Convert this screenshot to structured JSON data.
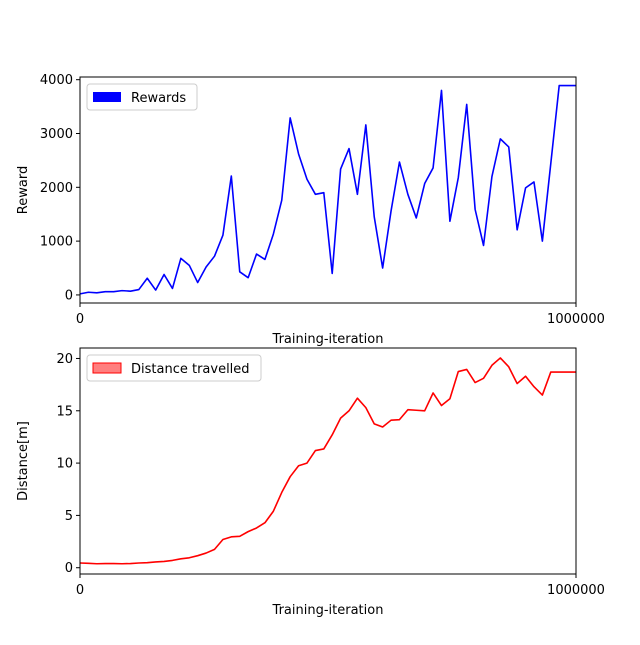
{
  "chart_data": [
    {
      "type": "line",
      "xlabel": "Training-iteration",
      "ylabel": "Reward",
      "xlim": [
        0,
        1000000
      ],
      "ylim": [
        -150,
        4050
      ],
      "xticks": [
        0,
        1000000
      ],
      "xtick_labels": [
        "0",
        "1000000"
      ],
      "yticks": [
        0,
        1000,
        2000,
        3000,
        4000
      ],
      "ytick_labels": [
        "0",
        "1000",
        "2000",
        "3000",
        "4000"
      ],
      "grid": false,
      "legend_position": "top-left",
      "series": [
        {
          "name": "Rewards",
          "color": "#0000ff",
          "x": [
            0,
            16949,
            33898,
            50847,
            67796,
            84745,
            101694,
            118644,
            135593,
            152542,
            169491,
            186440,
            203389,
            220338,
            237288,
            254237,
            271186,
            288135,
            305084,
            322033,
            338982,
            355932,
            372881,
            389830,
            406779,
            423728,
            440677,
            457627,
            474576,
            491525,
            508474,
            525423,
            542372,
            559322,
            576271,
            593220,
            610169,
            627118,
            644067,
            661016,
            677966,
            694915,
            711864,
            728813,
            745762,
            762711,
            779661,
            796610,
            813559,
            830508,
            847457,
            864406,
            881355,
            898305,
            915254,
            932203,
            949152,
            966101,
            983050,
            1000000
          ],
          "values": [
            20,
            50,
            40,
            60,
            60,
            80,
            70,
            100,
            310,
            90,
            380,
            120,
            680,
            550,
            230,
            520,
            720,
            1110,
            2210,
            430,
            320,
            760,
            660,
            1130,
            1760,
            3290,
            2620,
            2150,
            1870,
            1900,
            400,
            2340,
            2720,
            1870,
            3160,
            1450,
            500,
            1560,
            2470,
            1870,
            1430,
            2070,
            2360,
            3800,
            1370,
            2180,
            3540,
            1590,
            920,
            2200,
            2900,
            2750,
            1210,
            1990,
            2100,
            1000,
            2440,
            3890,
            3890,
            3890
          ]
        }
      ]
    },
    {
      "type": "line",
      "xlabel": "Training-iteration",
      "ylabel": "Distance[m]",
      "xlim": [
        0,
        1000000
      ],
      "ylim": [
        -0.6,
        21
      ],
      "xticks": [
        0,
        1000000
      ],
      "xtick_labels": [
        "0",
        "1000000"
      ],
      "yticks": [
        0,
        5,
        10,
        15,
        20
      ],
      "ytick_labels": [
        "0",
        "5",
        "10",
        "15",
        "20"
      ],
      "grid": false,
      "legend_position": "top-left",
      "series": [
        {
          "name": "Distance travelled",
          "color": "#ff0000",
          "x": [
            0,
            16949,
            33898,
            50847,
            67796,
            84745,
            101694,
            118644,
            135593,
            152542,
            169491,
            186440,
            203389,
            220338,
            237288,
            254237,
            271186,
            288135,
            305084,
            322033,
            338982,
            355932,
            372881,
            389830,
            406779,
            423728,
            440677,
            457627,
            474576,
            491525,
            508474,
            525423,
            542372,
            559322,
            576271,
            593220,
            610169,
            627118,
            644067,
            661016,
            677966,
            694915,
            711864,
            728813,
            745762,
            762711,
            779661,
            796610,
            813559,
            830508,
            847457,
            864406,
            881355,
            898305,
            915254,
            932203,
            949152,
            966101,
            983050,
            1000000
          ],
          "values": [
            0.45,
            0.42,
            0.38,
            0.4,
            0.4,
            0.38,
            0.4,
            0.45,
            0.48,
            0.55,
            0.6,
            0.7,
            0.85,
            0.95,
            1.15,
            1.4,
            1.75,
            2.7,
            2.95,
            3.0,
            3.45,
            3.8,
            4.3,
            5.4,
            7.2,
            8.7,
            9.75,
            10.0,
            11.2,
            11.35,
            12.7,
            14.3,
            15.0,
            16.2,
            15.3,
            13.75,
            13.45,
            14.1,
            14.15,
            15.1,
            15.05,
            15.0,
            16.7,
            15.5,
            16.15,
            18.75,
            18.95,
            17.7,
            18.1,
            19.35,
            20.05,
            19.2,
            17.6,
            18.3,
            17.3,
            16.5,
            18.7,
            18.7,
            18.7,
            18.7
          ]
        }
      ]
    }
  ]
}
